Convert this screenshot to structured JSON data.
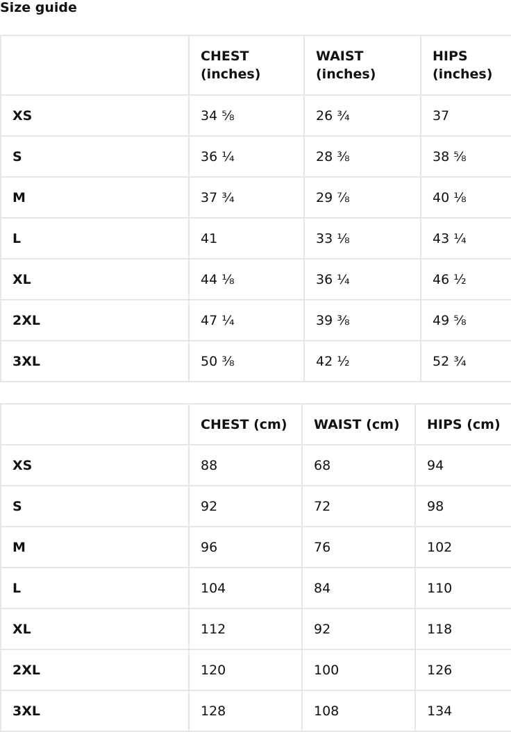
{
  "title": "Size guide",
  "inches_table": {
    "headers": [
      "",
      "CHEST (inches)",
      "WAIST (inches)",
      "HIPS (inches)"
    ],
    "rows": [
      [
        "XS",
        "34 ⅝",
        "26 ¾",
        "37"
      ],
      [
        "S",
        "36 ¼",
        "28 ⅜",
        "38 ⅝"
      ],
      [
        "M",
        "37 ¾",
        "29 ⅞",
        "40 ⅛"
      ],
      [
        "L",
        "41",
        "33 ⅛",
        "43 ¼"
      ],
      [
        "XL",
        "44 ⅛",
        "36 ¼",
        "46 ½"
      ],
      [
        "2XL",
        "47 ¼",
        "39 ⅜",
        "49 ⅝"
      ],
      [
        "3XL",
        "50 ⅜",
        "42 ½",
        "52 ¾"
      ]
    ]
  },
  "cm_table": {
    "headers": [
      "",
      "CHEST (cm)",
      "WAIST (cm)",
      "HIPS (cm)"
    ],
    "rows": [
      [
        "XS",
        "88",
        "68",
        "94"
      ],
      [
        "S",
        "92",
        "72",
        "98"
      ],
      [
        "M",
        "96",
        "76",
        "102"
      ],
      [
        "L",
        "104",
        "84",
        "110"
      ],
      [
        "XL",
        "112",
        "92",
        "118"
      ],
      [
        "2XL",
        "120",
        "100",
        "126"
      ],
      [
        "3XL",
        "128",
        "108",
        "134"
      ]
    ]
  }
}
